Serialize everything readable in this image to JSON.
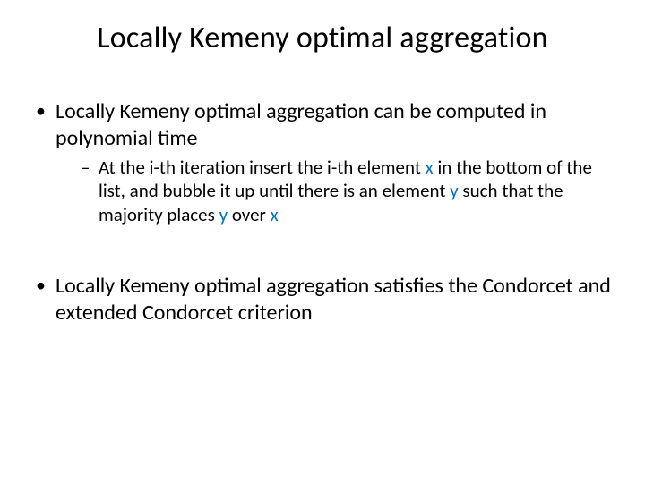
{
  "colors": {
    "background": "#ffffff",
    "text": "#000000",
    "accent": "#0070c0"
  },
  "typography": {
    "title_fontsize": 34,
    "body_fontsize": 24,
    "sub_fontsize": 21,
    "font_family": "Calibri"
  },
  "title": "Locally Kemeny optimal aggregation",
  "bullets": [
    {
      "text": "Locally Kemeny optimal aggregation can be computed in polynomial time",
      "sub": [
        {
          "segments": [
            {
              "t": "At the i-th iteration insert the i-th element "
            },
            {
              "t": "x",
              "accent": true
            },
            {
              "t": " in the bottom of the list, and bubble it up until there is an element "
            },
            {
              "t": "y",
              "accent": true
            },
            {
              "t": " such that the majority places "
            },
            {
              "t": "y",
              "accent": true
            },
            {
              "t": " over "
            },
            {
              "t": "x",
              "accent": true
            }
          ]
        }
      ]
    },
    {
      "text": "Locally Kemeny optimal aggregation satisfies the Condorcet and extended Condorcet criterion"
    }
  ]
}
